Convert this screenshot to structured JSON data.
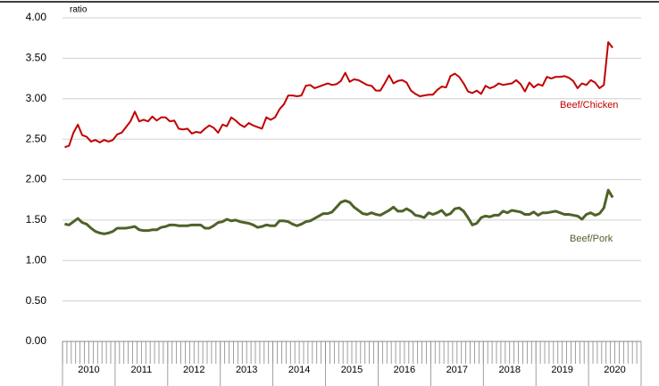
{
  "chart_data": {
    "type": "line",
    "y_axis_label": "ratio",
    "ylim": [
      0,
      4
    ],
    "yticks": [
      {
        "value": 0,
        "label": "0.00"
      },
      {
        "value": 0.5,
        "label": "0.50"
      },
      {
        "value": 1,
        "label": "1.00"
      },
      {
        "value": 1.5,
        "label": "1.50"
      },
      {
        "value": 2,
        "label": "2.00"
      },
      {
        "value": 2.5,
        "label": "2.50"
      },
      {
        "value": 3,
        "label": "3.00"
      },
      {
        "value": 3.5,
        "label": "3.50"
      },
      {
        "value": 4,
        "label": "4.00"
      }
    ],
    "grid": true,
    "year_labels": [
      "2010",
      "2011",
      "2012",
      "2013",
      "2014",
      "2015",
      "2016",
      "2017",
      "2018",
      "2019",
      "2020"
    ],
    "categories": [
      null,
      null,
      null,
      null,
      null,
      null,
      null,
      null,
      null,
      null,
      null,
      null,
      null,
      null,
      null,
      null,
      null,
      null,
      null,
      null,
      null,
      null,
      null,
      null,
      null,
      null,
      null,
      null,
      null,
      null,
      null,
      null,
      null,
      null,
      null,
      null,
      null,
      null,
      null,
      null,
      null,
      null,
      null,
      null,
      null,
      null,
      null,
      null,
      null,
      null,
      null,
      null,
      null,
      null,
      null,
      null,
      null,
      null,
      null,
      null,
      null,
      null,
      null,
      null,
      null,
      null,
      null,
      null,
      null,
      null,
      null,
      null,
      null,
      null,
      null,
      null,
      null,
      null,
      null,
      null,
      null,
      null,
      null,
      null,
      null,
      null,
      null,
      null,
      null,
      null,
      null,
      null,
      null,
      null,
      null,
      null,
      null,
      null,
      null,
      null,
      null,
      null,
      null,
      null,
      null,
      null,
      null,
      null,
      null,
      null,
      null,
      null,
      null,
      null,
      null,
      null,
      null,
      null,
      null,
      null,
      null,
      null,
      null,
      null,
      null,
      null,
      null,
      null,
      null,
      null,
      null,
      null
    ],
    "series": [
      {
        "name": "Beef/Chicken",
        "color": "#c00000",
        "values": [
          2.4,
          2.42,
          2.58,
          2.68,
          2.55,
          2.53,
          2.47,
          2.49,
          2.46,
          2.49,
          2.47,
          2.49,
          2.56,
          2.58,
          2.65,
          2.72,
          2.84,
          2.72,
          2.74,
          2.72,
          2.78,
          2.73,
          2.77,
          2.77,
          2.72,
          2.73,
          2.63,
          2.62,
          2.63,
          2.57,
          2.59,
          2.58,
          2.63,
          2.67,
          2.64,
          2.58,
          2.68,
          2.66,
          2.77,
          2.73,
          2.68,
          2.65,
          2.7,
          2.67,
          2.65,
          2.63,
          2.77,
          2.74,
          2.77,
          2.87,
          2.93,
          3.04,
          3.04,
          3.03,
          3.04,
          3.16,
          3.17,
          3.13,
          3.15,
          3.17,
          3.19,
          3.17,
          3.18,
          3.22,
          3.32,
          3.21,
          3.24,
          3.23,
          3.2,
          3.17,
          3.16,
          3.1,
          3.1,
          3.19,
          3.29,
          3.19,
          3.22,
          3.23,
          3.2,
          3.1,
          3.06,
          3.03,
          3.04,
          3.05,
          3.05,
          3.11,
          3.15,
          3.14,
          3.28,
          3.31,
          3.27,
          3.19,
          3.09,
          3.07,
          3.1,
          3.06,
          3.16,
          3.13,
          3.15,
          3.19,
          3.17,
          3.18,
          3.19,
          3.23,
          3.18,
          3.09,
          3.2,
          3.14,
          3.18,
          3.16,
          3.27,
          3.25,
          3.27,
          3.27,
          3.28,
          3.26,
          3.22,
          3.13,
          3.19,
          3.17,
          3.23,
          3.2,
          3.13,
          3.17,
          3.7,
          3.63,
          null,
          null,
          null,
          null,
          null,
          null
        ]
      },
      {
        "name": "Beef/Pork",
        "color": "#4f6228",
        "values": [
          1.45,
          1.44,
          1.48,
          1.52,
          1.47,
          1.45,
          1.4,
          1.36,
          1.34,
          1.33,
          1.34,
          1.36,
          1.4,
          1.4,
          1.4,
          1.41,
          1.42,
          1.38,
          1.37,
          1.37,
          1.38,
          1.38,
          1.41,
          1.42,
          1.44,
          1.44,
          1.43,
          1.43,
          1.43,
          1.44,
          1.44,
          1.44,
          1.4,
          1.4,
          1.43,
          1.47,
          1.48,
          1.51,
          1.49,
          1.5,
          1.48,
          1.47,
          1.46,
          1.44,
          1.41,
          1.42,
          1.44,
          1.43,
          1.43,
          1.49,
          1.49,
          1.48,
          1.45,
          1.43,
          1.45,
          1.48,
          1.49,
          1.52,
          1.55,
          1.58,
          1.58,
          1.6,
          1.66,
          1.72,
          1.74,
          1.72,
          1.66,
          1.62,
          1.58,
          1.57,
          1.59,
          1.57,
          1.56,
          1.59,
          1.62,
          1.66,
          1.61,
          1.61,
          1.64,
          1.61,
          1.56,
          1.55,
          1.53,
          1.59,
          1.57,
          1.59,
          1.62,
          1.56,
          1.58,
          1.64,
          1.65,
          1.61,
          1.53,
          1.44,
          1.46,
          1.53,
          1.55,
          1.54,
          1.56,
          1.56,
          1.61,
          1.59,
          1.62,
          1.61,
          1.6,
          1.57,
          1.57,
          1.6,
          1.56,
          1.59,
          1.59,
          1.6,
          1.61,
          1.59,
          1.57,
          1.57,
          1.56,
          1.55,
          1.51,
          1.57,
          1.59,
          1.56,
          1.58,
          1.65,
          1.87,
          1.78,
          null,
          null,
          null,
          null,
          null,
          null
        ]
      }
    ]
  }
}
